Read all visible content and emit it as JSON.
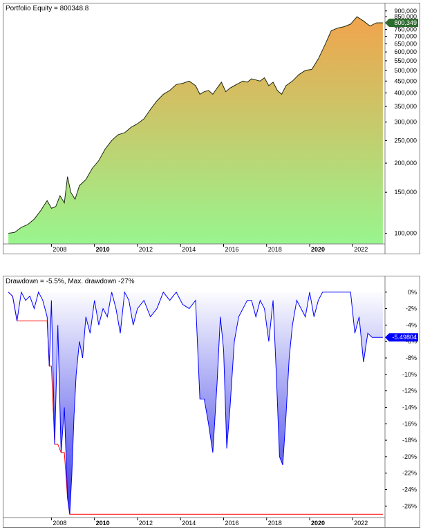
{
  "equity_panel": {
    "title": "Portfolio Equity = 800348.8",
    "value_marker": "800,349",
    "colors": {
      "fill_top": "#F4A04A",
      "fill_bottom": "#98F58E",
      "line": "#1E2A14",
      "marker": "#2E6B2E"
    }
  },
  "drawdown_panel": {
    "title": "Drawdown = -5.5%, Max. drawdown -27%",
    "value_marker": "-5.49804",
    "colors": {
      "line": "#0000FF",
      "fill_top": "#FFFFFF",
      "fill_bottom": "#3333E6",
      "max_line": "#FF0000",
      "marker": "#0000FF"
    }
  },
  "chart_data": [
    {
      "type": "area",
      "title": "Portfolio Equity = 800348.8",
      "scale": "log",
      "ylim": [
        90000,
        930000
      ],
      "xlim": [
        2005.9,
        2023.5
      ],
      "y_ticks": [
        {
          "value": 100000,
          "label": "100,000"
        },
        {
          "value": 150000,
          "label": "150,000"
        },
        {
          "value": 200000,
          "label": "200,000"
        },
        {
          "value": 250000,
          "label": "250,000"
        },
        {
          "value": 300000,
          "label": "300,000"
        },
        {
          "value": 350000,
          "label": "350,000"
        },
        {
          "value": 400000,
          "label": "400,000"
        },
        {
          "value": 450000,
          "label": "450,000"
        },
        {
          "value": 500000,
          "label": "500,000"
        },
        {
          "value": 550000,
          "label": "550,000"
        },
        {
          "value": 600000,
          "label": "600,000"
        },
        {
          "value": 650000,
          "label": "650,000"
        },
        {
          "value": 700000,
          "label": "700,000"
        },
        {
          "value": 750000,
          "label": "750,000"
        },
        {
          "value": 800000,
          "label": "800,000"
        },
        {
          "value": 850000,
          "label": "850,000"
        },
        {
          "value": 900000,
          "label": "900,000"
        }
      ],
      "x_ticks": [
        {
          "value": 2008,
          "label": "2008",
          "bold": false
        },
        {
          "value": 2010,
          "label": "2010",
          "bold": true
        },
        {
          "value": 2012,
          "label": "2012",
          "bold": false
        },
        {
          "value": 2014,
          "label": "2014",
          "bold": false
        },
        {
          "value": 2016,
          "label": "2016",
          "bold": false
        },
        {
          "value": 2018,
          "label": "2018",
          "bold": false
        },
        {
          "value": 2020,
          "label": "2020",
          "bold": true
        },
        {
          "value": 2022,
          "label": "2022",
          "bold": false
        }
      ],
      "x": [
        2006.0,
        2006.3,
        2006.6,
        2006.9,
        2007.2,
        2007.5,
        2007.8,
        2008.0,
        2008.2,
        2008.4,
        2008.6,
        2008.75,
        2008.9,
        2009.1,
        2009.3,
        2009.6,
        2009.9,
        2010.2,
        2010.5,
        2010.8,
        2011.1,
        2011.4,
        2011.7,
        2012.0,
        2012.3,
        2012.6,
        2012.9,
        2013.2,
        2013.5,
        2013.8,
        2014.1,
        2014.4,
        2014.7,
        2014.9,
        2015.1,
        2015.3,
        2015.5,
        2015.7,
        2015.9,
        2016.1,
        2016.3,
        2016.5,
        2016.7,
        2016.9,
        2017.1,
        2017.3,
        2017.5,
        2017.7,
        2017.9,
        2018.1,
        2018.3,
        2018.5,
        2018.7,
        2018.9,
        2019.2,
        2019.5,
        2019.8,
        2020.1,
        2020.4,
        2020.7,
        2021.0,
        2021.3,
        2021.6,
        2021.9,
        2022.2,
        2022.5,
        2022.8,
        2023.1,
        2023.4
      ],
      "values": [
        100000,
        101000,
        106000,
        109000,
        115000,
        125000,
        138000,
        128000,
        130000,
        145000,
        135000,
        175000,
        150000,
        140000,
        160000,
        170000,
        190000,
        205000,
        230000,
        250000,
        265000,
        270000,
        285000,
        295000,
        310000,
        340000,
        370000,
        395000,
        410000,
        435000,
        440000,
        450000,
        430000,
        395000,
        405000,
        410000,
        395000,
        420000,
        445000,
        405000,
        420000,
        430000,
        440000,
        450000,
        445000,
        460000,
        455000,
        450000,
        465000,
        430000,
        445000,
        410000,
        395000,
        430000,
        450000,
        480000,
        500000,
        505000,
        560000,
        640000,
        740000,
        760000,
        770000,
        790000,
        850000,
        815000,
        775000,
        800000,
        800349
      ]
    },
    {
      "type": "area",
      "title": "Drawdown = -5.5%, Max. drawdown -27%",
      "ylim": [
        -27.4,
        0.4
      ],
      "xlim": [
        2005.9,
        2023.5
      ],
      "y_ticks": [
        {
          "value": 0,
          "label": "0%"
        },
        {
          "value": -2,
          "label": "-2%"
        },
        {
          "value": -4,
          "label": "-4%"
        },
        {
          "value": -6,
          "label": "-6%"
        },
        {
          "value": -8,
          "label": "-8%"
        },
        {
          "value": -10,
          "label": "-10%"
        },
        {
          "value": -12,
          "label": "-12%"
        },
        {
          "value": -14,
          "label": "-14%"
        },
        {
          "value": -16,
          "label": "-16%"
        },
        {
          "value": -18,
          "label": "-18%"
        },
        {
          "value": -20,
          "label": "-20%"
        },
        {
          "value": -22,
          "label": "-22%"
        },
        {
          "value": -24,
          "label": "-24%"
        },
        {
          "value": -26,
          "label": "-26%"
        }
      ],
      "x_ticks": [
        {
          "value": 2008,
          "label": "2008",
          "bold": false
        },
        {
          "value": 2010,
          "label": "2010",
          "bold": true
        },
        {
          "value": 2012,
          "label": "2012",
          "bold": false
        },
        {
          "value": 2014,
          "label": "2014",
          "bold": false
        },
        {
          "value": 2016,
          "label": "2016",
          "bold": false
        },
        {
          "value": 2018,
          "label": "2018",
          "bold": false
        },
        {
          "value": 2020,
          "label": "2020",
          "bold": true
        },
        {
          "value": 2022,
          "label": "2022",
          "bold": false
        }
      ],
      "x": [
        2006.0,
        2006.2,
        2006.4,
        2006.6,
        2006.8,
        2007.0,
        2007.2,
        2007.4,
        2007.6,
        2007.8,
        2007.9,
        2008.0,
        2008.15,
        2008.3,
        2008.45,
        2008.6,
        2008.75,
        2008.85,
        2008.95,
        2009.05,
        2009.15,
        2009.3,
        2009.45,
        2009.6,
        2009.8,
        2010.0,
        2010.2,
        2010.4,
        2010.6,
        2010.8,
        2011.0,
        2011.2,
        2011.4,
        2011.6,
        2011.8,
        2012.0,
        2012.3,
        2012.6,
        2012.9,
        2013.2,
        2013.5,
        2013.8,
        2014.1,
        2014.4,
        2014.7,
        2014.9,
        2015.1,
        2015.3,
        2015.5,
        2015.7,
        2015.85,
        2016.0,
        2016.15,
        2016.3,
        2016.5,
        2016.7,
        2016.9,
        2017.1,
        2017.3,
        2017.5,
        2017.7,
        2017.9,
        2018.1,
        2018.3,
        2018.45,
        2018.6,
        2018.75,
        2018.9,
        2019.05,
        2019.2,
        2019.4,
        2019.6,
        2019.8,
        2020.0,
        2020.2,
        2020.4,
        2020.6,
        2020.8,
        2021.0,
        2021.3,
        2021.6,
        2021.9,
        2022.1,
        2022.3,
        2022.5,
        2022.7,
        2022.9,
        2023.1,
        2023.4
      ],
      "values": [
        0,
        -0.5,
        -3.5,
        0,
        -1,
        -0.5,
        -2,
        0,
        -1,
        -3,
        -9,
        -1,
        -18.5,
        -4,
        -19.5,
        -14,
        -25,
        -27,
        -22,
        -15,
        -10,
        -6,
        -8,
        -3,
        -5,
        -1,
        -4,
        -2,
        -3,
        0,
        -2,
        -5,
        0,
        -1,
        -4,
        -2,
        -1,
        -3,
        -2,
        0,
        -1,
        0,
        -1.5,
        -2,
        -1,
        -13,
        -13,
        -16,
        -19.5,
        -11,
        -3,
        -7,
        -19,
        -14,
        -6,
        -3,
        -2,
        -1,
        -1,
        -3,
        -1,
        -2,
        -6,
        -1,
        -10,
        -20,
        -21,
        -15,
        -8,
        -4,
        -1,
        -2,
        -3,
        0,
        -3,
        -1,
        0,
        0,
        0,
        0,
        0,
        0,
        -5,
        -3,
        -8.5,
        -5,
        -5.5,
        -5.5,
        -5.498
      ]
    }
  ]
}
